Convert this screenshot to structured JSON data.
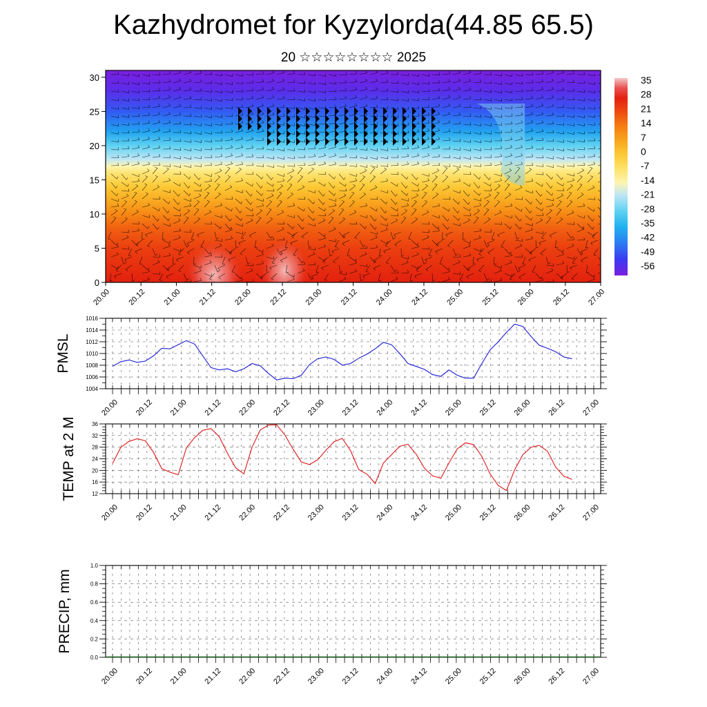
{
  "header": {
    "title": "Kazhydromet for Kyzylorda(44.85 65.5)",
    "subtitle": "20 ☆☆☆☆☆☆☆☆ 2025"
  },
  "chart_data": [
    {
      "type": "heatmap",
      "title": "",
      "xlabel": "",
      "ylabel": "",
      "x_ticks": [
        "20.00",
        "20.12",
        "21.00",
        "21.12",
        "22.00",
        "22.12",
        "23.00",
        "23.12",
        "24.00",
        "24.12",
        "25.00",
        "25.12",
        "26.00",
        "26.12",
        "27.00"
      ],
      "y_ticks": [
        0,
        5,
        10,
        15,
        20,
        25,
        30
      ],
      "ylim": [
        0,
        31
      ],
      "colorbar_ticks": [
        35,
        28,
        21,
        14,
        7,
        0,
        -7,
        -14,
        -21,
        -28,
        -35,
        -42,
        -49,
        -56
      ],
      "colorbar_range": [
        -60,
        38
      ],
      "overlay": "wind barbs",
      "surface_warm_peaks_x": [
        "21.12",
        "22.12"
      ],
      "cold_dip_x": "25.12"
    },
    {
      "type": "line",
      "ylabel": "PMSL",
      "ylim": [
        1004,
        1016
      ],
      "y_ticks": [
        1004,
        1006,
        1008,
        1010,
        1012,
        1014,
        1016
      ],
      "x_ticks": [
        "20.00",
        "20.12",
        "21.00",
        "21.12",
        "22.00",
        "22.12",
        "23.00",
        "23.12",
        "24.00",
        "24.12",
        "25.00",
        "25.12",
        "26.00",
        "26.12",
        "27.00"
      ],
      "color": "#1a1ad6",
      "values": [
        1007.8,
        1008.6,
        1008.9,
        1008.5,
        1008.7,
        1009.6,
        1010.9,
        1010.8,
        1011.5,
        1012.2,
        1011.6,
        1009.6,
        1007.6,
        1007.2,
        1007.4,
        1006.9,
        1007.4,
        1008.3,
        1007.9,
        1006.6,
        1005.5,
        1005.8,
        1005.7,
        1006.3,
        1008.1,
        1009.1,
        1009.4,
        1009.0,
        1008.0,
        1008.3,
        1009.2,
        1009.9,
        1010.8,
        1011.9,
        1011.5,
        1010.0,
        1008.3,
        1007.8,
        1007.3,
        1006.4,
        1006.1,
        1007.2,
        1006.3,
        1005.8,
        1005.8,
        1008.3,
        1010.6,
        1012.0,
        1013.6,
        1015.0,
        1014.6,
        1012.9,
        1011.4,
        1010.9,
        1010.3,
        1009.4,
        1009.1
      ]
    },
    {
      "type": "line",
      "ylabel": "TEMP at 2 M",
      "ylim": [
        12,
        36
      ],
      "y_ticks": [
        12,
        16,
        20,
        24,
        28,
        32,
        36
      ],
      "x_ticks": [
        "20.00",
        "20.12",
        "21.00",
        "21.12",
        "22.00",
        "22.12",
        "23.00",
        "23.12",
        "24.00",
        "24.12",
        "25.00",
        "25.12",
        "26.00",
        "26.12",
        "27.00"
      ],
      "color": "#e01515",
      "values": [
        22.4,
        27.9,
        30.0,
        30.9,
        30.2,
        26.2,
        20.6,
        19.4,
        18.5,
        27.8,
        31.3,
        33.8,
        34.4,
        31.6,
        25.9,
        20.9,
        18.8,
        28.0,
        33.9,
        35.6,
        35.7,
        32.2,
        27.3,
        22.9,
        22.0,
        23.7,
        26.9,
        29.9,
        31.0,
        26.8,
        20.3,
        18.7,
        15.5,
        22.5,
        25.4,
        28.3,
        29.0,
        25.6,
        20.8,
        18.1,
        17.3,
        22.6,
        27.4,
        29.5,
        28.9,
        24.8,
        18.8,
        14.8,
        13.1,
        20.2,
        25.4,
        28.0,
        28.6,
        26.6,
        21.1,
        18.0,
        16.9
      ]
    },
    {
      "type": "bar",
      "ylabel": "PRECIP, mm",
      "ylim": [
        0.0,
        1.0
      ],
      "y_ticks": [
        "0.0",
        "0.2",
        "0.4",
        "0.6",
        "0.8",
        "1.0"
      ],
      "x_ticks": [
        "20.00",
        "20.12",
        "21.00",
        "21.12",
        "22.00",
        "22.12",
        "23.00",
        "23.12",
        "24.00",
        "24.12",
        "25.00",
        "25.12",
        "26.00",
        "26.12",
        "27.00"
      ],
      "values": [
        0,
        0,
        0,
        0,
        0,
        0,
        0,
        0,
        0,
        0,
        0,
        0,
        0,
        0,
        0,
        0,
        0,
        0,
        0,
        0,
        0,
        0,
        0,
        0,
        0,
        0,
        0,
        0,
        0,
        0,
        0,
        0,
        0,
        0,
        0,
        0,
        0,
        0,
        0,
        0,
        0,
        0,
        0,
        0,
        0,
        0,
        0,
        0,
        0,
        0,
        0,
        0,
        0,
        0,
        0,
        0,
        0
      ]
    }
  ]
}
